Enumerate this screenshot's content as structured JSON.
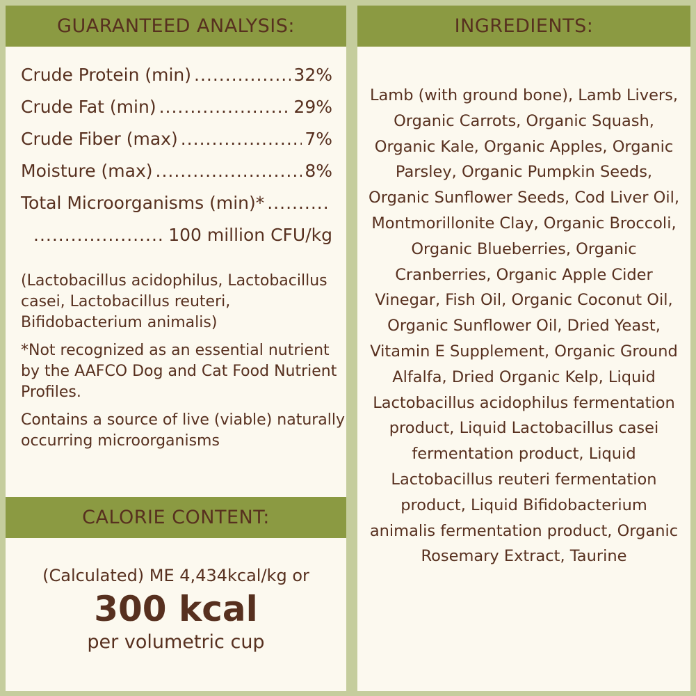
{
  "colors": {
    "header": "#8b9a42",
    "border": "#c5cd9d",
    "panel": "#fcf9ef",
    "text": "#57301f"
  },
  "analysis": {
    "title": "GUARANTEED ANALYSIS:",
    "rows": [
      {
        "label": "Crude Protein (min)",
        "value": "32%"
      },
      {
        "label": "Crude Fat (min)",
        "value": "29%"
      },
      {
        "label": "Crude Fiber (max)",
        "value": "7%"
      },
      {
        "label": "Moisture (max)",
        "value": "8%"
      },
      {
        "label": "Total Microorganisms (min)*",
        "value": ""
      },
      {
        "label": "",
        "value": "100 million CFU/kg"
      }
    ],
    "strains": "(Lactobacillus acidophilus, Lactobacillus casei, Lactobacillus reuteri, Bifidobacterium animalis)",
    "footnote": "*Not recognized as an essential nutrient by the AAFCO Dog and Cat Food Nutrient Profiles.",
    "live": "Contains a source of live (viable) naturally occurring microorganisms"
  },
  "calorie": {
    "title": "CALORIE CONTENT:",
    "line1": "(Calculated) ME 4,434kcal/kg or",
    "big": "300 kcal",
    "line3": "per volumetric cup"
  },
  "ingredients": {
    "title": "INGREDIENTS:",
    "text": "Lamb (with ground bone), Lamb Livers, Organic Carrots, Organic Squash, Organic Kale, Organic Apples, Organic Parsley, Organic Pumpkin Seeds, Organic Sunflower Seeds, Cod Liver Oil, Montmorillonite Clay, Organic Broccoli, Organic Blueberries, Organic Cranberries, Organic Apple Cider Vinegar, Fish Oil, Organic Coconut Oil, Organic Sunflower Oil, Dried Yeast, Vitamin E Supplement, Organic Ground Alfalfa, Dried Organic Kelp, Liquid Lactobacillus acidophilus fermentation product, Liquid Lactobacillus casei fermentation product, Liquid Lactobacillus reuteri fermentation product, Liquid Bifidobacterium animalis fermentation product, Organic Rosemary Extract, Taurine"
  }
}
